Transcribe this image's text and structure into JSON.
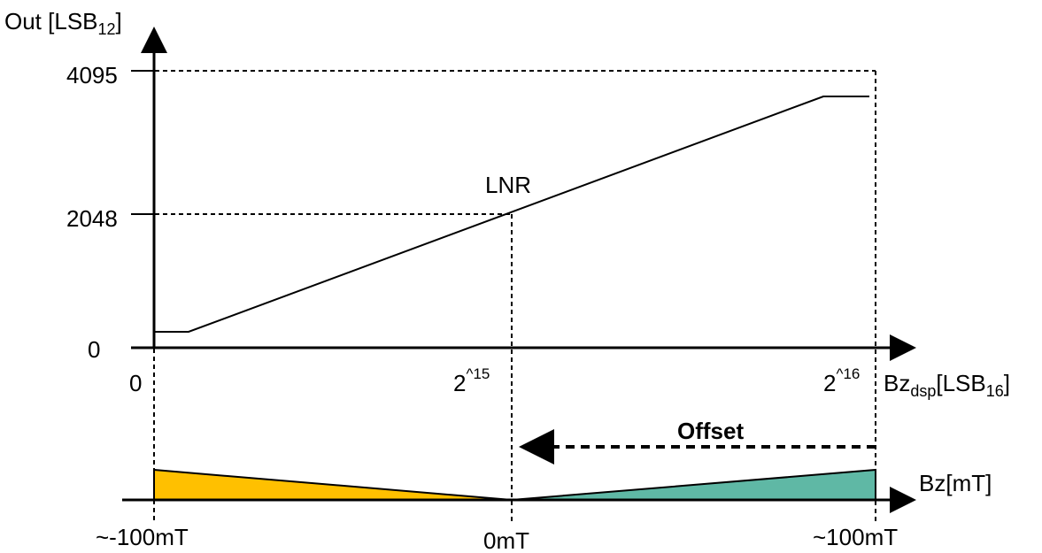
{
  "y_axis": {
    "title": "Out [LSB",
    "title_sub": "12",
    "title_end": "]",
    "ticks": [
      "4095",
      "2048",
      "0"
    ]
  },
  "x_axis_lsb": {
    "ticks": {
      "zero": "0",
      "mid_base": "2",
      "mid_exp": "^15",
      "end_base": "2",
      "end_exp": "^16"
    },
    "label_main": "Bz",
    "label_sub_dsp": "dsp",
    "label_mid": "[LSB",
    "label_sub_16": "16",
    "label_end": "]"
  },
  "curve_label": "LNR",
  "offset_label": "Offset",
  "field_axis": {
    "label": "Bz[mT]",
    "ticks": [
      "~-100mT",
      "0mT",
      "~100mT"
    ]
  },
  "colors": {
    "negative_fill": "#FFC000",
    "positive_fill": "#5FB8A5",
    "line": "#000000"
  }
}
